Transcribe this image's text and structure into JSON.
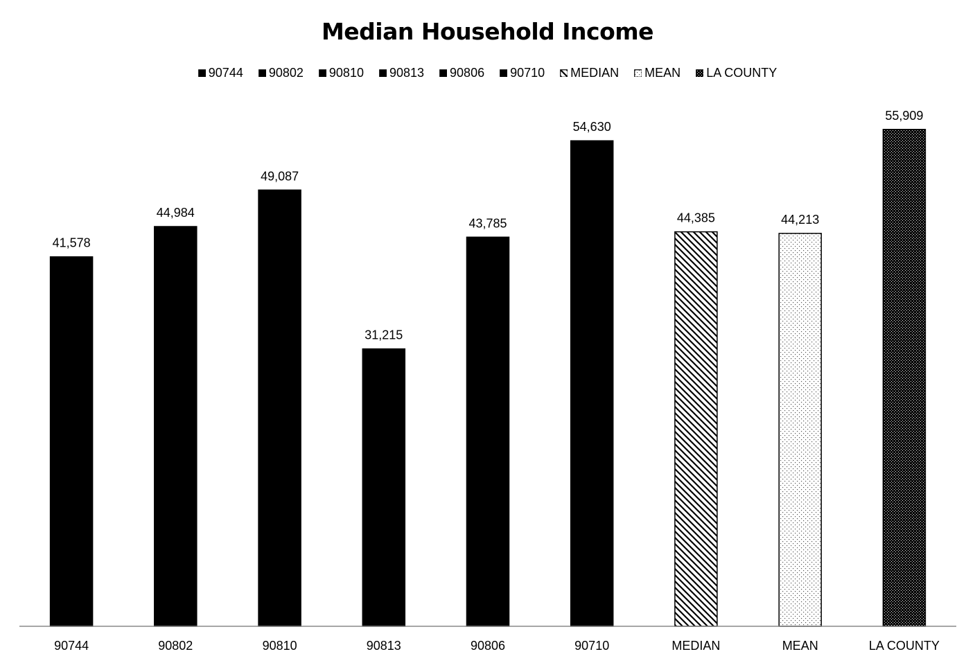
{
  "chart_data": {
    "type": "bar",
    "title": "Median Household Income",
    "categories": [
      "90744",
      "90802",
      "90810",
      "90813",
      "90806",
      "90710",
      "MEDIAN",
      "MEAN",
      "LA COUNTY"
    ],
    "values": [
      41578,
      44984,
      49087,
      31215,
      43785,
      54630,
      44385,
      44213,
      55909
    ],
    "value_labels": [
      "41,578",
      "44,984",
      "49,087",
      "31,215",
      "43,785",
      "54,630",
      "44,385",
      "44,213",
      "55,909"
    ],
    "fills": [
      "solid",
      "solid",
      "solid",
      "solid",
      "solid",
      "solid",
      "diagonal-hatch",
      "light-dots",
      "dense-dots"
    ],
    "legend": [
      {
        "label": "90744",
        "fill": "solid"
      },
      {
        "label": "90802",
        "fill": "solid"
      },
      {
        "label": "90810",
        "fill": "solid"
      },
      {
        "label": "90813",
        "fill": "solid"
      },
      {
        "label": "90806",
        "fill": "solid"
      },
      {
        "label": "90710",
        "fill": "solid"
      },
      {
        "label": "MEDIAN",
        "fill": "diagonal-hatch"
      },
      {
        "label": "MEAN",
        "fill": "light-dots"
      },
      {
        "label": "LA COUNTY",
        "fill": "dense-dots"
      }
    ],
    "legend_position": "top",
    "xlabel": "",
    "ylabel": "",
    "ylim": [
      0,
      58000
    ],
    "grid": false,
    "colors": {
      "bar": "#000000",
      "axis": "#888888",
      "background": "#ffffff"
    }
  }
}
